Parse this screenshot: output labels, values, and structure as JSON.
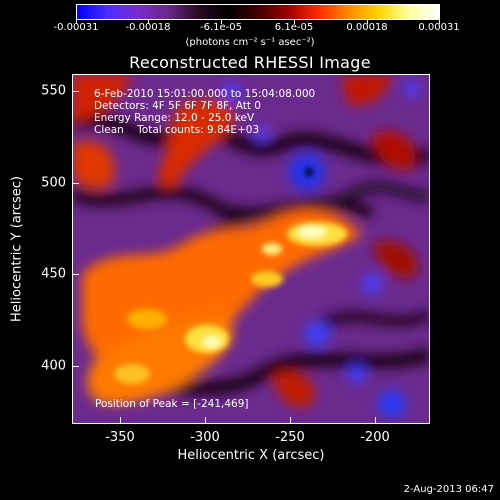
{
  "colorbar": {
    "ticks": [
      "-0.00031",
      "-0.00018",
      "-6.1e-05",
      "6.1e-05",
      "0.00018",
      "0.00031"
    ],
    "unit_label": "(photons cm⁻² s⁻¹ asec⁻²)",
    "colors": [
      "#0000ff",
      "#4b2dff",
      "#7a2ccc",
      "#6a2a8a",
      "#2b0a25",
      "#000000",
      "#400000",
      "#a00000",
      "#ff2a00",
      "#ff8a00",
      "#ffd400",
      "#ffffa0",
      "#ffffff"
    ]
  },
  "title": "Reconstructed RHESSI Image",
  "info": {
    "line1": "6-Feb-2010 15:01:00.000 to 15:04:08.000",
    "line2": "Detectors: 4F 5F 6F 7F 8F, Att 0",
    "line3": "Energy Range: 12.0 - 25.0 keV",
    "line4": "Clean    Total counts: 9.84E+03"
  },
  "peak": "Position of Peak = [-241,469]",
  "axes": {
    "xlabel": "Heliocentric X (arcsec)",
    "ylabel": "Heliocentric Y (arcsec)",
    "xticks": [
      "-350",
      "-300",
      "-250",
      "-200"
    ],
    "yticks": [
      "550",
      "500",
      "450",
      "400"
    ]
  },
  "date_stamp": "2-Aug-2013 06:47"
}
